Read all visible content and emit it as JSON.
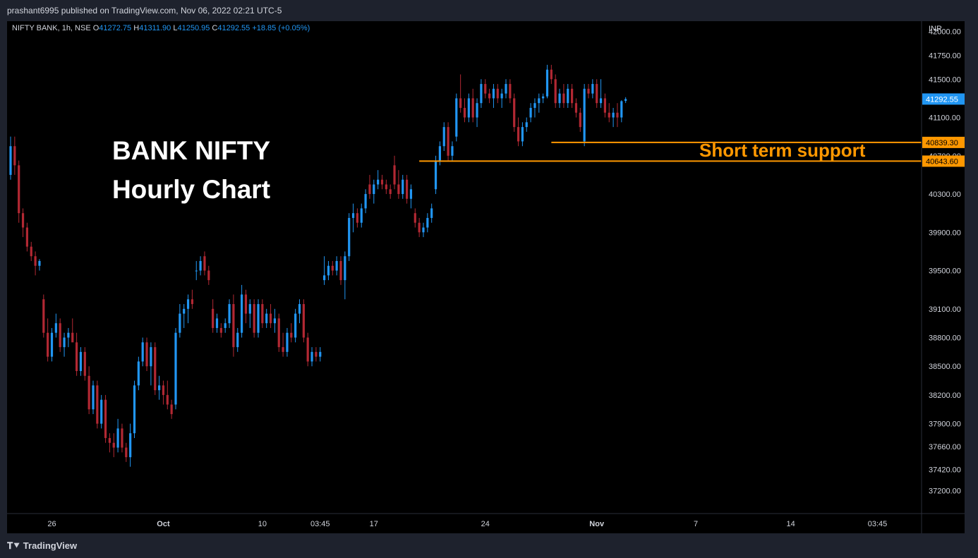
{
  "header": {
    "published_text": "prashant6995 published on TradingView.com, Nov 06, 2022 02:21 UTC-5"
  },
  "symbol": {
    "name": "NIFTY BANK, 1h, NSE",
    "o_label": "O",
    "o_value": "41272.75",
    "h_label": "H",
    "h_value": "41311.90",
    "l_label": "L",
    "l_value": "41250.95",
    "c_label": "C",
    "c_value": "41292.55",
    "change": "+18.85 (+0.05%)"
  },
  "annotations": {
    "title_line1": "BANK NIFTY",
    "title_line2": "Hourly Chart",
    "support_label": "Short term support"
  },
  "footer": {
    "brand": "TradingView",
    "brand_icon": "tradingview-logo-icon"
  },
  "colors": {
    "up": "#2196f3",
    "down": "#b22833",
    "support": "#ff9800",
    "price_tag": "#2196f3",
    "background": "#000000",
    "frame": "#1e222d"
  },
  "chart_data": {
    "type": "candlestick",
    "timeframe": "1h",
    "currency": "INR",
    "ylim": [
      37000,
      42150
    ],
    "yticks": [
      {
        "value": 42000,
        "label": "42000.00"
      },
      {
        "value": 41750,
        "label": "41750.00"
      },
      {
        "value": 41500,
        "label": "41500.00"
      },
      {
        "value": 41100,
        "label": "41100.00"
      },
      {
        "value": 40700,
        "label": "40700.00"
      },
      {
        "value": 40300,
        "label": "40300.00"
      },
      {
        "value": 39900,
        "label": "39900.00"
      },
      {
        "value": 39500,
        "label": "39500.00"
      },
      {
        "value": 39100,
        "label": "39100.00"
      },
      {
        "value": 38800,
        "label": "38800.00"
      },
      {
        "value": 38500,
        "label": "38500.00"
      },
      {
        "value": 38200,
        "label": "38200.00"
      },
      {
        "value": 37900,
        "label": "37900.00"
      },
      {
        "value": 37660,
        "label": "37660.00"
      },
      {
        "value": 37420,
        "label": "37420.00"
      },
      {
        "value": 37200,
        "label": "37200.00"
      }
    ],
    "xticks": [
      {
        "index": 10,
        "label": "26",
        "bold": false
      },
      {
        "index": 37,
        "label": "Oct",
        "bold": true
      },
      {
        "index": 61,
        "label": "10",
        "bold": false
      },
      {
        "index": 75,
        "label": "03:45",
        "bold": false
      },
      {
        "index": 88,
        "label": "17",
        "bold": false
      },
      {
        "index": 115,
        "label": "24",
        "bold": false
      },
      {
        "index": 142,
        "label": "Nov",
        "bold": true
      },
      {
        "index": 166,
        "label": "7",
        "bold": false
      },
      {
        "index": 189,
        "label": "14",
        "bold": false
      },
      {
        "index": 210,
        "label": "03:45",
        "bold": false
      }
    ],
    "last_price": {
      "value": 41292.55,
      "label": "41292.55"
    },
    "support_levels": [
      {
        "value": 40839.3,
        "label": "40839.30",
        "from_index": 131
      },
      {
        "value": 40643.6,
        "label": "40643.60",
        "from_index": 99
      }
    ],
    "candles": [
      [
        40500,
        40900,
        40450,
        40800
      ],
      [
        40800,
        40900,
        40500,
        40600
      ],
      [
        40600,
        40650,
        40000,
        40100
      ],
      [
        40100,
        40150,
        39850,
        39950
      ],
      [
        39950,
        40000,
        39700,
        39750
      ],
      [
        39750,
        39800,
        39600,
        39650
      ],
      [
        39650,
        39700,
        39450,
        39550
      ],
      [
        39550,
        39620,
        39500,
        39600
      ],
      [
        39200,
        39250,
        38800,
        38850
      ],
      [
        38850,
        39000,
        38550,
        38600
      ],
      [
        38600,
        38900,
        38550,
        38850
      ],
      [
        38850,
        39050,
        38800,
        38950
      ],
      [
        38950,
        39000,
        38650,
        38700
      ],
      [
        38700,
        38850,
        38600,
        38800
      ],
      [
        38800,
        38900,
        38700,
        38850
      ],
      [
        38850,
        39000,
        38800,
        38750
      ],
      [
        38750,
        38850,
        38400,
        38450
      ],
      [
        38450,
        38700,
        38400,
        38650
      ],
      [
        38650,
        38700,
        38350,
        38400
      ],
      [
        38400,
        38500,
        38000,
        38050
      ],
      [
        38050,
        38350,
        38000,
        38300
      ],
      [
        38300,
        38350,
        37850,
        37900
      ],
      [
        37900,
        38200,
        37850,
        38150
      ],
      [
        38150,
        38200,
        37700,
        37750
      ],
      [
        37750,
        37800,
        37600,
        37700
      ],
      [
        37700,
        37800,
        37550,
        37650
      ],
      [
        37650,
        37950,
        37600,
        37850
      ],
      [
        37850,
        37900,
        37600,
        37650
      ],
      [
        37650,
        37700,
        37500,
        37550
      ],
      [
        37550,
        37900,
        37450,
        37800
      ],
      [
        37800,
        38350,
        37750,
        38300
      ],
      [
        38300,
        38600,
        38250,
        38550
      ],
      [
        38550,
        38800,
        38500,
        38750
      ],
      [
        38750,
        38800,
        38450,
        38500
      ],
      [
        38500,
        38750,
        38300,
        38700
      ],
      [
        38700,
        38750,
        38200,
        38250
      ],
      [
        38250,
        38400,
        38150,
        38300
      ],
      [
        38300,
        38350,
        38100,
        38200
      ],
      [
        38200,
        38350,
        38050,
        38100
      ],
      [
        38100,
        38150,
        37950,
        38000
      ],
      [
        38100,
        38900,
        38050,
        38850
      ],
      [
        38850,
        39150,
        38800,
        39050
      ],
      [
        39050,
        39150,
        38900,
        39100
      ],
      [
        39100,
        39250,
        38950,
        39200
      ],
      [
        39200,
        39300,
        39100,
        39150
      ],
      [
        39500,
        39600,
        39400,
        39500
      ],
      [
        39500,
        39650,
        39450,
        39600
      ],
      [
        39650,
        39700,
        39450,
        39500
      ],
      [
        39500,
        39550,
        39350,
        39400
      ],
      [
        39100,
        39200,
        38850,
        38900
      ],
      [
        38900,
        39050,
        38850,
        39000
      ],
      [
        38900,
        38950,
        38800,
        38850
      ],
      [
        38900,
        39000,
        38850,
        38950
      ],
      [
        38950,
        39200,
        38900,
        39150
      ],
      [
        39150,
        39250,
        38600,
        38700
      ],
      [
        38700,
        38900,
        38650,
        38850
      ],
      [
        38850,
        39350,
        38800,
        39250
      ],
      [
        39250,
        39300,
        38950,
        39050
      ],
      [
        39050,
        39200,
        38900,
        39150
      ],
      [
        39150,
        39200,
        38800,
        38850
      ],
      [
        38850,
        39200,
        38800,
        39150
      ],
      [
        39150,
        39200,
        38900,
        38950
      ],
      [
        38950,
        39100,
        38900,
        39050
      ],
      [
        39050,
        39150,
        38900,
        38950
      ],
      [
        38950,
        39100,
        38850,
        39000
      ],
      [
        39000,
        39050,
        38650,
        38700
      ],
      [
        38700,
        38850,
        38600,
        38650
      ],
      [
        38650,
        38900,
        38600,
        38850
      ],
      [
        38850,
        38950,
        38750,
        38800
      ],
      [
        38800,
        39100,
        38750,
        39050
      ],
      [
        39050,
        39200,
        38950,
        39150
      ],
      [
        39150,
        39200,
        38750,
        38800
      ],
      [
        38800,
        38850,
        38500,
        38550
      ],
      [
        38550,
        38700,
        38500,
        38650
      ],
      [
        38650,
        38700,
        38550,
        38600
      ],
      [
        38600,
        38700,
        38550,
        38650
      ],
      [
        39400,
        39650,
        39350,
        39450
      ],
      [
        39450,
        39600,
        39400,
        39550
      ],
      [
        39550,
        39600,
        39450,
        39500
      ],
      [
        39500,
        39650,
        39450,
        39600
      ],
      [
        39600,
        39650,
        39350,
        39400
      ],
      [
        39400,
        39700,
        39200,
        39650
      ],
      [
        39650,
        40100,
        39600,
        40050
      ],
      [
        40050,
        40200,
        39900,
        40100
      ],
      [
        40100,
        40150,
        39950,
        40000
      ],
      [
        40000,
        40200,
        39950,
        40150
      ],
      [
        40150,
        40350,
        40100,
        40300
      ],
      [
        40400,
        40500,
        40250,
        40300
      ],
      [
        40300,
        40450,
        40200,
        40400
      ],
      [
        40400,
        40550,
        40350,
        40450
      ],
      [
        40450,
        40500,
        40350,
        40400
      ],
      [
        40400,
        40450,
        40300,
        40350
      ],
      [
        40350,
        40400,
        40250,
        40300
      ],
      [
        40600,
        40700,
        40350,
        40400
      ],
      [
        40400,
        40550,
        40250,
        40300
      ],
      [
        40300,
        40500,
        40250,
        40450
      ],
      [
        40450,
        40500,
        40200,
        40250
      ],
      [
        40250,
        40400,
        40150,
        40350
      ],
      [
        40100,
        40150,
        39950,
        40000
      ],
      [
        40000,
        40050,
        39850,
        39900
      ],
      [
        39900,
        40000,
        39850,
        39950
      ],
      [
        39950,
        40100,
        39900,
        40050
      ],
      [
        40050,
        40200,
        40000,
        40150
      ],
      [
        40350,
        40700,
        40300,
        40650
      ],
      [
        40650,
        40850,
        40600,
        40800
      ],
      [
        40800,
        41050,
        40750,
        41000
      ],
      [
        41000,
        41050,
        40650,
        40700
      ],
      [
        40700,
        40850,
        40650,
        40800
      ],
      [
        40900,
        41350,
        40850,
        41300
      ],
      [
        41300,
        41550,
        41150,
        41200
      ],
      [
        41200,
        41300,
        41050,
        41100
      ],
      [
        41100,
        41350,
        41050,
        41300
      ],
      [
        41300,
        41400,
        41050,
        41100
      ],
      [
        41100,
        41300,
        41000,
        41250
      ],
      [
        41250,
        41500,
        41200,
        41450
      ],
      [
        41450,
        41500,
        41300,
        41350
      ],
      [
        41350,
        41400,
        41250,
        41300
      ],
      [
        41300,
        41450,
        41200,
        41400
      ],
      [
        41400,
        41450,
        41250,
        41300
      ],
      [
        41300,
        41400,
        41200,
        41350
      ],
      [
        41350,
        41500,
        41300,
        41450
      ],
      [
        41450,
        41500,
        41250,
        41300
      ],
      [
        41300,
        41350,
        40950,
        41000
      ],
      [
        41000,
        41100,
        40800,
        40850
      ],
      [
        40850,
        41050,
        40800,
        41000
      ],
      [
        41000,
        41100,
        40950,
        41050
      ],
      [
        41100,
        41250,
        41050,
        41200
      ],
      [
        41200,
        41300,
        41100,
        41250
      ],
      [
        41250,
        41350,
        41150,
        41300
      ],
      [
        41300,
        41350,
        41250,
        41320
      ],
      [
        41320,
        41650,
        41300,
        41600
      ],
      [
        41600,
        41650,
        41450,
        41500
      ],
      [
        41500,
        41550,
        41200,
        41250
      ],
      [
        41250,
        41400,
        41200,
        41350
      ],
      [
        41350,
        41450,
        41200,
        41250
      ],
      [
        41250,
        41450,
        41200,
        41400
      ],
      [
        41400,
        41450,
        41200,
        41250
      ],
      [
        41250,
        41300,
        41100,
        41150
      ],
      [
        41150,
        41200,
        40950,
        41000
      ],
      [
        40850,
        41450,
        40800,
        41400
      ],
      [
        41400,
        41450,
        41300,
        41350
      ],
      [
        41350,
        41500,
        41300,
        41450
      ],
      [
        41450,
        41500,
        41200,
        41250
      ],
      [
        41250,
        41500,
        41200,
        41300
      ],
      [
        41300,
        41350,
        41100,
        41150
      ],
      [
        41150,
        41250,
        41050,
        41100
      ],
      [
        41100,
        41200,
        41000,
        41150
      ],
      [
        41150,
        41250,
        41000,
        41100
      ],
      [
        41100,
        41280,
        41050,
        41270
      ],
      [
        41272.75,
        41311.9,
        41250.95,
        41292.55
      ]
    ]
  }
}
